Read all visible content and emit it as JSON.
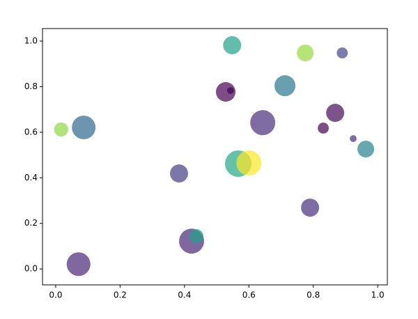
{
  "chart_data": {
    "type": "scatter",
    "x": [
      0.071,
      0.087,
      0.017,
      0.383,
      0.422,
      0.437,
      0.528,
      0.543,
      0.548,
      0.567,
      0.6,
      0.643,
      0.712,
      0.775,
      0.79,
      0.831,
      0.868,
      0.89,
      0.924,
      0.963
    ],
    "values": [
      0.021,
      0.621,
      0.612,
      0.419,
      0.122,
      0.144,
      0.777,
      0.783,
      0.982,
      0.462,
      0.465,
      0.642,
      0.804,
      0.948,
      0.269,
      0.618,
      0.685,
      0.948,
      0.572,
      0.526
    ],
    "sizes": [
      600,
      600,
      210,
      350,
      670,
      210,
      410,
      50,
      350,
      750,
      670,
      670,
      470,
      300,
      350,
      130,
      350,
      130,
      50,
      300
    ],
    "colors": [
      "#482878",
      "#31688e",
      "#8fd744",
      "#433e85",
      "#482878",
      "#1fa187",
      "#440154",
      "#440154",
      "#1fa187",
      "#22a884",
      "#fde725",
      "#472d7b",
      "#2a788e",
      "#95d840",
      "#472d7b",
      "#440154",
      "#450b57",
      "#414487",
      "#46327e",
      "#26828e"
    ],
    "alpha": 0.7,
    "xlim": [
      -0.041,
      1.03
    ],
    "ylim": [
      -0.07,
      1.055
    ],
    "xticks": [
      {
        "value": 0,
        "label": "0.0"
      },
      0.2,
      0.4,
      0.6,
      0.8,
      {
        "value": 1,
        "label": "1.0"
      }
    ],
    "yticks": [
      {
        "value": 0,
        "label": "0.0"
      },
      0.2,
      0.4,
      0.6,
      0.8,
      {
        "value": 1,
        "label": "1.0"
      }
    ]
  }
}
